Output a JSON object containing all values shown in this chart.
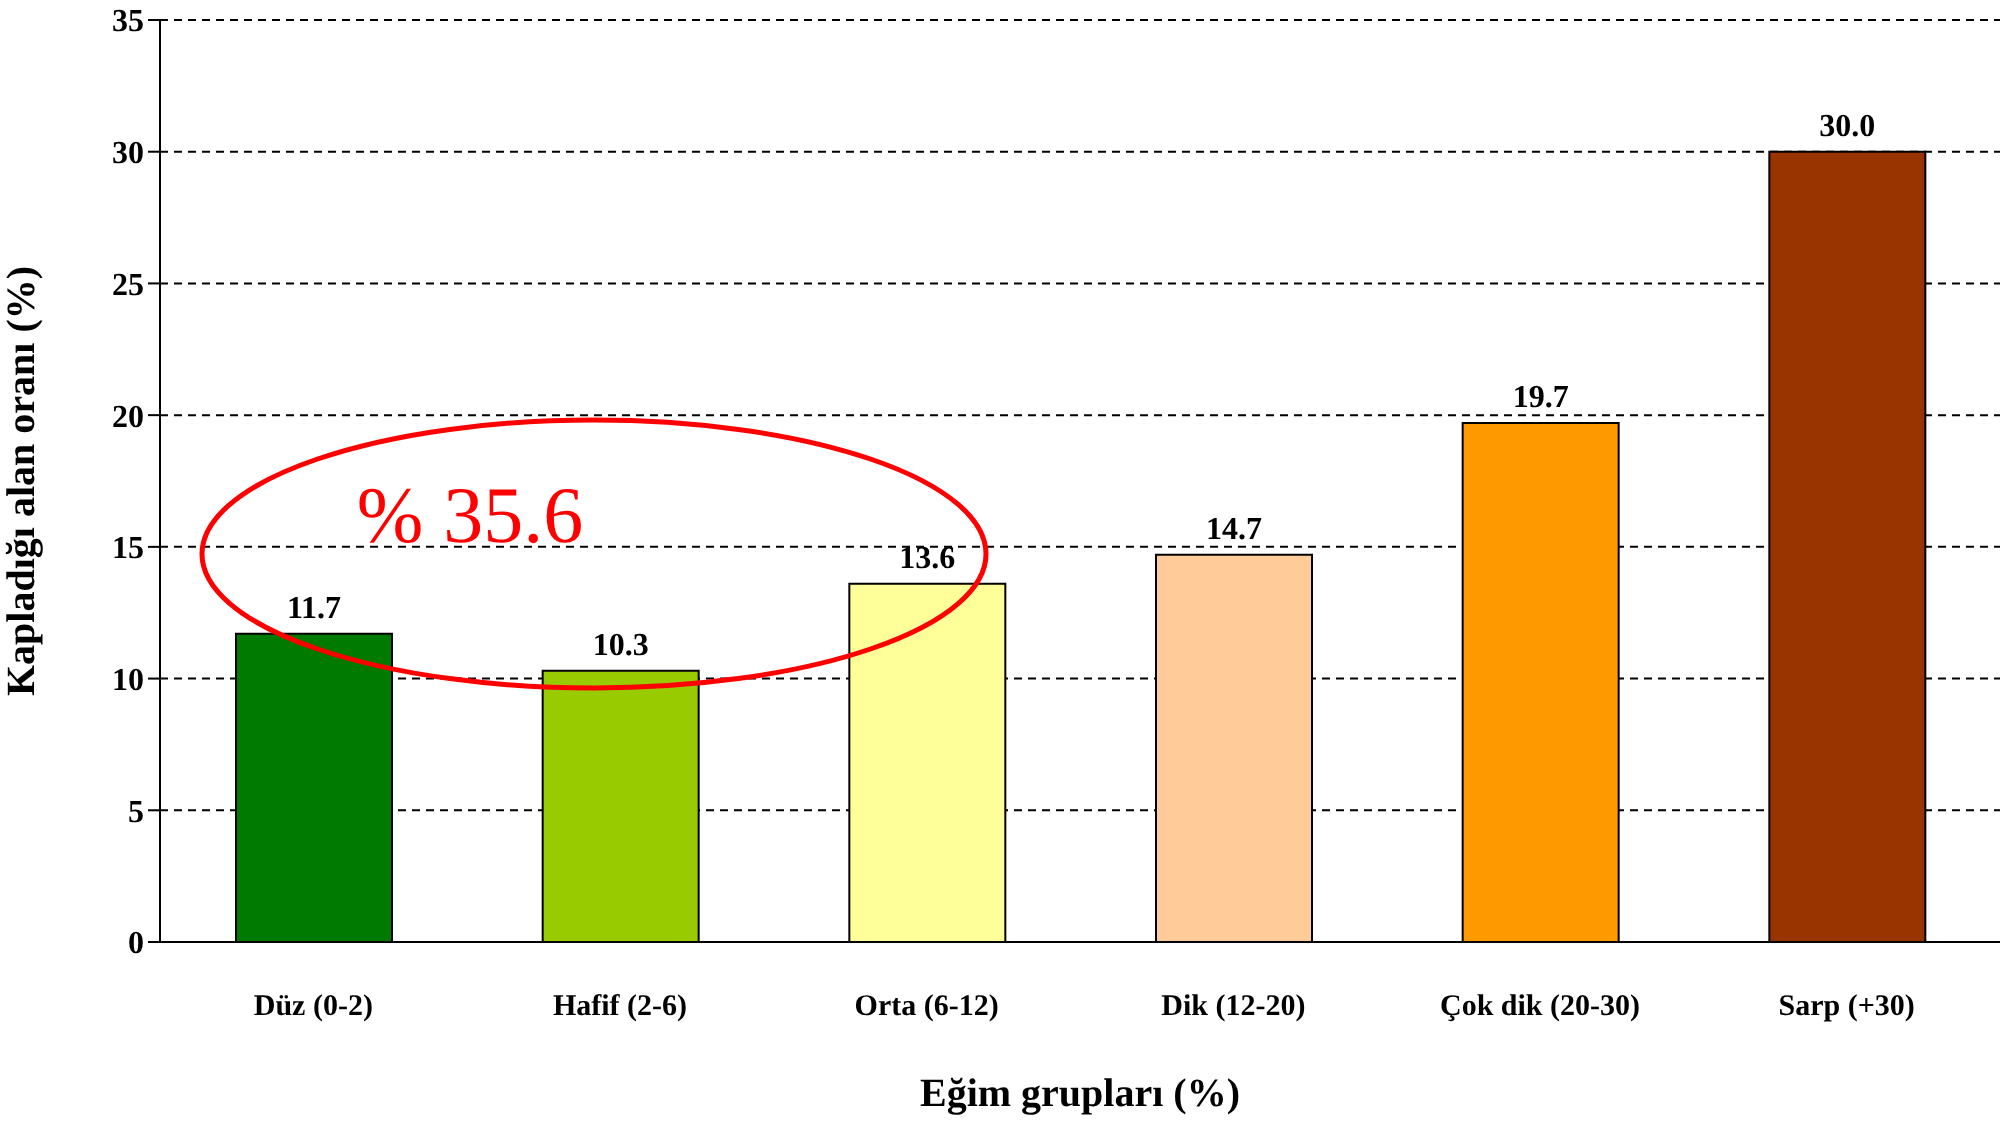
{
  "chart_data": {
    "type": "bar",
    "xlabel": "Eğim grupları (%)",
    "ylabel": "Kapladığı alan oranı (%)",
    "categories": [
      "Düz (0-2)",
      "Hafif (2-6)",
      "Orta (6-12)",
      "Dik (12-20)",
      "Çok dik (20-30)",
      "Sarp (+30)"
    ],
    "values": [
      11.7,
      10.3,
      13.6,
      14.7,
      19.7,
      30.0
    ],
    "value_labels": [
      "11.7",
      "10.3",
      "13.6",
      "14.7",
      "19.7",
      "30.0"
    ],
    "colors": [
      "#007a00",
      "#99cc00",
      "#ffff99",
      "#ffcc99",
      "#ff9900",
      "#993300"
    ],
    "ylim": [
      0,
      35
    ],
    "yticks": [
      0,
      5,
      10,
      15,
      20,
      25,
      30,
      35
    ],
    "grid": "y",
    "legend": false,
    "annotations": [
      "% 35.6"
    ]
  }
}
